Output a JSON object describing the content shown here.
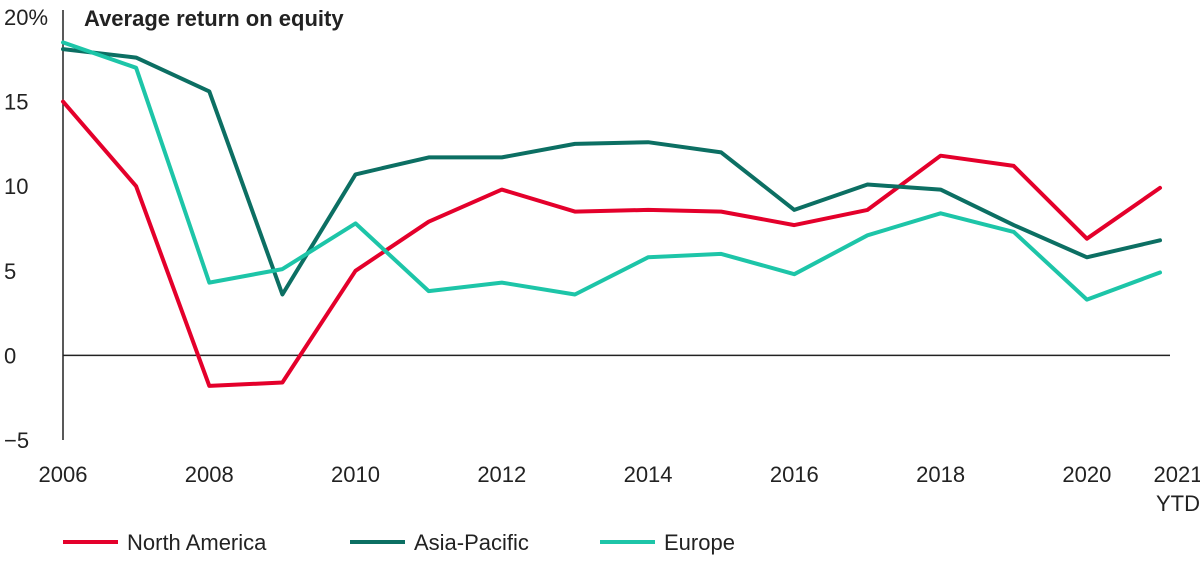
{
  "chart_data": {
    "type": "line",
    "title": "Average return on equity",
    "xlabel": "",
    "ylabel": "",
    "x": [
      "2006",
      "2007",
      "2008",
      "2009",
      "2010",
      "2011",
      "2012",
      "2013",
      "2014",
      "2015",
      "2016",
      "2017",
      "2018",
      "2019",
      "2020",
      "2021 YTD"
    ],
    "x_tick_labels": [
      {
        "index": 0,
        "lines": [
          "2006"
        ]
      },
      {
        "index": 2,
        "lines": [
          "2008"
        ]
      },
      {
        "index": 4,
        "lines": [
          "2010"
        ]
      },
      {
        "index": 6,
        "lines": [
          "2012"
        ]
      },
      {
        "index": 8,
        "lines": [
          "2014"
        ]
      },
      {
        "index": 10,
        "lines": [
          "2016"
        ]
      },
      {
        "index": 12,
        "lines": [
          "2018"
        ]
      },
      {
        "index": 14,
        "lines": [
          "2020"
        ]
      },
      {
        "index": 15,
        "lines": [
          "2021",
          "YTD"
        ]
      }
    ],
    "y_ticks": [
      {
        "value": 20,
        "label": "20%"
      },
      {
        "value": 15,
        "label": "15"
      },
      {
        "value": 10,
        "label": "10"
      },
      {
        "value": 5,
        "label": "5"
      },
      {
        "value": 0,
        "label": "0"
      },
      {
        "value": -5,
        "label": "−5"
      }
    ],
    "ylim": [
      -5,
      20
    ],
    "grid": false,
    "legend_position": "bottom-left",
    "series": [
      {
        "name": "North America",
        "color": "#e4002b",
        "values": [
          15.0,
          10.0,
          -1.8,
          -1.6,
          5.0,
          7.9,
          9.8,
          8.5,
          8.6,
          8.5,
          7.7,
          8.6,
          11.8,
          11.2,
          6.9,
          9.9
        ]
      },
      {
        "name": "Asia-Pacific",
        "color": "#0c6f63",
        "values": [
          18.1,
          17.6,
          15.6,
          3.6,
          10.7,
          11.7,
          11.7,
          12.5,
          12.6,
          12.0,
          8.6,
          10.1,
          9.8,
          7.7,
          5.8,
          6.8
        ]
      },
      {
        "name": "Europe",
        "color": "#1dc5a8",
        "values": [
          18.5,
          17.0,
          4.3,
          5.1,
          7.8,
          3.8,
          4.3,
          3.6,
          5.8,
          6.0,
          4.8,
          7.1,
          8.4,
          7.3,
          3.3,
          4.9
        ]
      }
    ]
  }
}
